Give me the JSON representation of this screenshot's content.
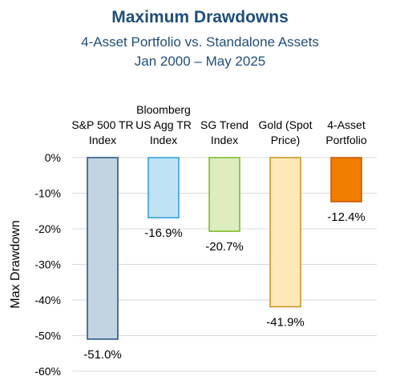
{
  "chart_data": {
    "type": "bar",
    "title": "Maximum Drawdowns",
    "subtitle": [
      "4-Asset Portfolio vs. Standalone Assets",
      "Jan 2000 – May 2025"
    ],
    "ylabel": "Max Drawdown",
    "xlabel": "",
    "ylim": [
      -60,
      0
    ],
    "yticks": [
      0,
      -10,
      -20,
      -30,
      -40,
      -50,
      -60
    ],
    "ytick_labels": [
      "0%",
      "-10%",
      "-20%",
      "-30%",
      "-40%",
      "-50%",
      "-60%"
    ],
    "grid": true,
    "categories": [
      [
        "S&P 500 TR",
        "Index"
      ],
      [
        "Bloomberg",
        "US Agg TR",
        "Index"
      ],
      [
        "SG Trend",
        "Index"
      ],
      [
        "Gold (Spot",
        "Price)"
      ],
      [
        "4-Asset",
        "Portfolio"
      ]
    ],
    "values": [
      -51.0,
      -16.9,
      -20.7,
      -41.9,
      -12.4
    ],
    "data_labels": [
      "-51.0%",
      "-16.9%",
      "-20.7%",
      "-41.9%",
      "-12.4%"
    ],
    "bar_fills": [
      "#C2D3E2",
      "#BFE3F5",
      "#DDEDC0",
      "#FDE9B8",
      "#F07C00"
    ],
    "bar_strokes": [
      "#1F4E79",
      "#2E9BD6",
      "#7AB81E",
      "#C9901A",
      "#C55A00"
    ]
  }
}
